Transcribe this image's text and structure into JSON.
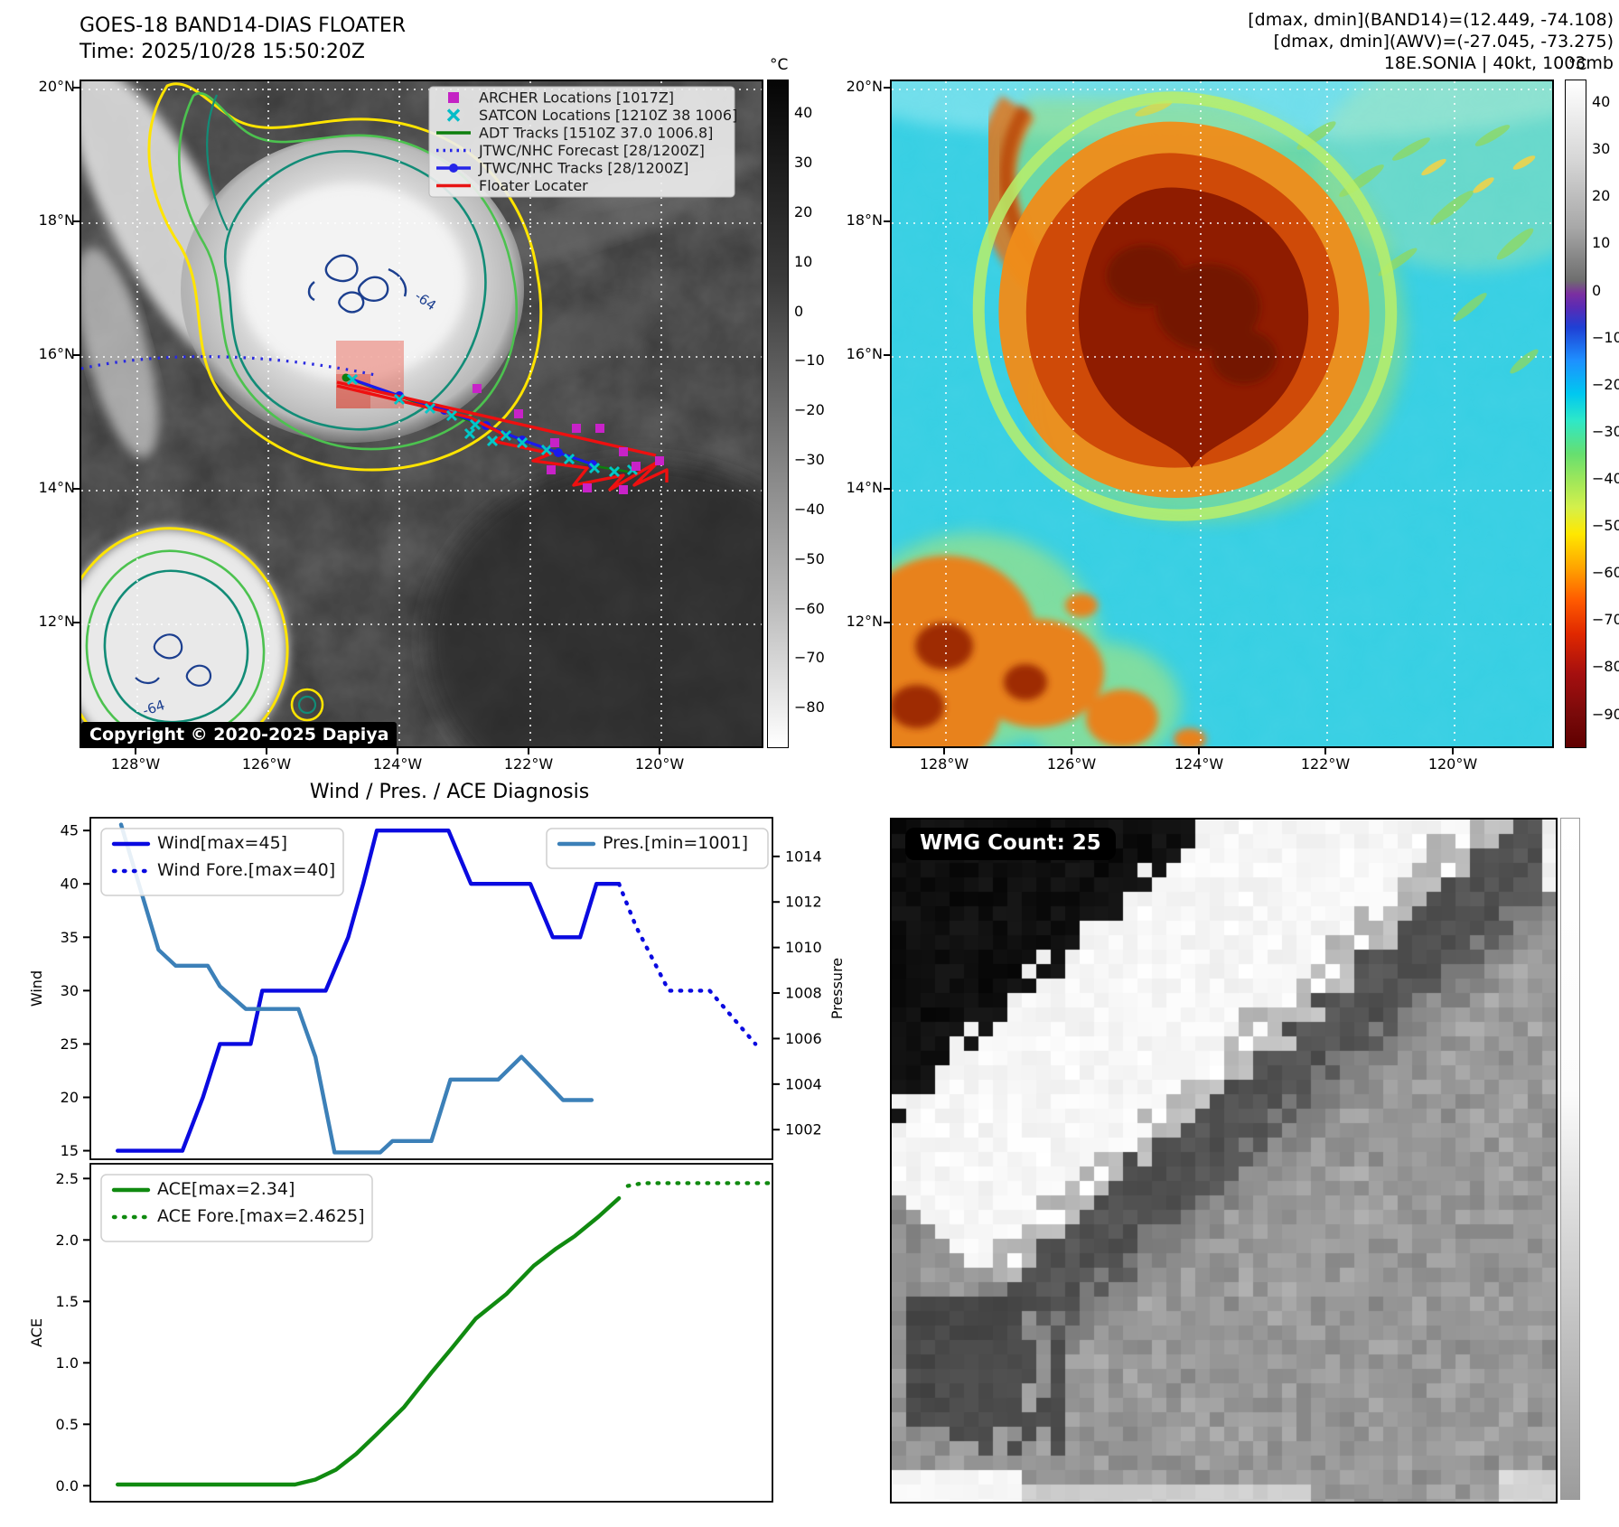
{
  "left_panel": {
    "title_line1": "GOES-18 BAND14-DIAS FLOATER",
    "title_line2": "Time: 2025/10/28 15:50:20Z",
    "copyright": "Copyright © 2020-2025 Dapiya",
    "contour_annotation": "-64",
    "lat_labels": [
      "20°N",
      "18°N",
      "16°N",
      "14°N",
      "12°N"
    ],
    "lon_labels": [
      "128°W",
      "126°W",
      "124°W",
      "122°W",
      "120°W"
    ],
    "legend": [
      {
        "label": "ARCHER Locations [1017Z]",
        "marker": "square",
        "color": "#c422c4"
      },
      {
        "label": "SATCON Locations [1210Z 38 1006]",
        "marker": "x",
        "color": "#00bcc8"
      },
      {
        "label": "ADT Tracks [1510Z 37.0 1006.8]",
        "marker": "line",
        "color": "#0d7f0d"
      },
      {
        "label": "JTWC/NHC Forecast [28/1200Z]",
        "marker": "dotted",
        "color": "#2525e8"
      },
      {
        "label": "JTWC/NHC Tracks [28/1200Z]",
        "marker": "line-dot",
        "color": "#2525e8"
      },
      {
        "label": "Floater Locater",
        "marker": "line",
        "color": "#e81414"
      }
    ],
    "colorbar": {
      "unit": "°C",
      "ticks": [
        40,
        30,
        20,
        10,
        0,
        -10,
        -20,
        -30,
        -40,
        -50,
        -60,
        -70,
        -80
      ]
    }
  },
  "right_panel": {
    "header_line1": "[dmax, dmin](BAND14)=(12.449, -74.108)",
    "header_line2": "[dmax, dmin](AWV)=(-27.045, -73.275)",
    "header_line3": "18E.SONIA | 40kt, 1003mb",
    "lat_labels": [
      "20°N",
      "18°N",
      "16°N",
      "14°N",
      "12°N"
    ],
    "lon_labels": [
      "128°W",
      "126°W",
      "124°W",
      "122°W",
      "120°W"
    ],
    "colorbar": {
      "unit": "°C",
      "ticks": [
        40,
        30,
        20,
        10,
        0,
        -10,
        -20,
        -30,
        -40,
        -50,
        -60,
        -70,
        -80,
        -90
      ]
    }
  },
  "chart_data": [
    {
      "type": "line",
      "title": "Wind / Pres. / ACE Diagnosis",
      "xlabel": "",
      "ylabel": "Wind",
      "ylabel_right": "Pressure",
      "ylim": [
        14.2,
        46.2
      ],
      "yticks": [
        15,
        20,
        25,
        30,
        35,
        40,
        45
      ],
      "ylim_right": [
        1000.7,
        1015.7
      ],
      "yticks_right": [
        1002,
        1004,
        1006,
        1008,
        1010,
        1012,
        1014
      ],
      "grid": false,
      "series": [
        {
          "name": "Wind[max=45]",
          "color": "#0a0ae0",
          "style": "solid",
          "axis": "left",
          "points": [
            [
              0.04,
              15
            ],
            [
              0.135,
              15
            ],
            [
              0.165,
              20
            ],
            [
              0.19,
              25
            ],
            [
              0.235,
              25
            ],
            [
              0.252,
              30
            ],
            [
              0.345,
              30
            ],
            [
              0.378,
              35
            ],
            [
              0.4,
              40
            ],
            [
              0.42,
              45
            ],
            [
              0.525,
              45
            ],
            [
              0.558,
              40
            ],
            [
              0.645,
              40
            ],
            [
              0.678,
              35
            ],
            [
              0.718,
              35
            ],
            [
              0.742,
              40
            ],
            [
              0.775,
              40
            ]
          ]
        },
        {
          "name": "Wind Fore.[max=40]",
          "color": "#0a0ae0",
          "style": "dotted",
          "axis": "left",
          "points": [
            [
              0.775,
              40
            ],
            [
              0.8,
              36
            ],
            [
              0.848,
              30
            ],
            [
              0.908,
              30
            ],
            [
              0.975,
              25
            ]
          ]
        },
        {
          "name": "Pres.[min=1001]",
          "color": "#3c80b8",
          "style": "solid",
          "axis": "right",
          "points": [
            [
              0.045,
              1015.4
            ],
            [
              0.1,
              1009.9
            ],
            [
              0.125,
              1009.2
            ],
            [
              0.172,
              1009.2
            ],
            [
              0.19,
              1008.3
            ],
            [
              0.228,
              1007.3
            ],
            [
              0.305,
              1007.3
            ],
            [
              0.33,
              1005.2
            ],
            [
              0.358,
              1001.0
            ],
            [
              0.425,
              1001.0
            ],
            [
              0.443,
              1001.5
            ],
            [
              0.5,
              1001.5
            ],
            [
              0.528,
              1004.2
            ],
            [
              0.598,
              1004.2
            ],
            [
              0.632,
              1005.2
            ],
            [
              0.658,
              1004.4
            ],
            [
              0.693,
              1003.3
            ],
            [
              0.735,
              1003.3
            ]
          ]
        }
      ]
    },
    {
      "type": "line",
      "title": "",
      "xlabel": "",
      "ylabel": "ACE",
      "ylim": [
        -0.13,
        2.62
      ],
      "yticks": [
        0.0,
        0.5,
        1.0,
        1.5,
        2.0,
        2.5
      ],
      "grid": false,
      "series": [
        {
          "name": "ACE[max=2.34]",
          "color": "#108a10",
          "style": "solid",
          "axis": "left",
          "points": [
            [
              0.04,
              0.01
            ],
            [
              0.3,
              0.01
            ],
            [
              0.33,
              0.05
            ],
            [
              0.36,
              0.13
            ],
            [
              0.39,
              0.26
            ],
            [
              0.42,
              0.42
            ],
            [
              0.46,
              0.64
            ],
            [
              0.5,
              0.92
            ],
            [
              0.53,
              1.12
            ],
            [
              0.565,
              1.36
            ],
            [
              0.61,
              1.56
            ],
            [
              0.65,
              1.79
            ],
            [
              0.683,
              1.93
            ],
            [
              0.71,
              2.03
            ],
            [
              0.745,
              2.19
            ],
            [
              0.775,
              2.34
            ]
          ]
        },
        {
          "name": "ACE Fore.[max=2.4625]",
          "color": "#108a10",
          "style": "dotted",
          "axis": "left",
          "points": [
            [
              0.788,
              2.44
            ],
            [
              0.81,
              2.4625
            ],
            [
              0.995,
              2.4625
            ]
          ]
        }
      ]
    }
  ],
  "wmg_panel": {
    "count_label": "WMG Count: 25"
  }
}
